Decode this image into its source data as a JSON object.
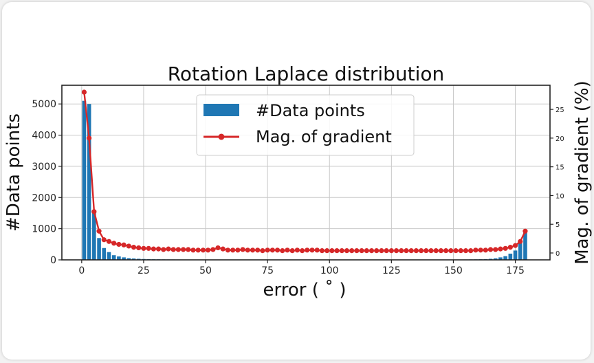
{
  "chart_data": {
    "type": "bar",
    "title": "Rotation Laplace distribution",
    "xlabel": "error ( ˚ )",
    "ylabel_left": "#Data points",
    "ylabel_right": "Mag. of gradient (%)",
    "xlim": [
      -8,
      189
    ],
    "ylim_left": [
      0,
      5600
    ],
    "ylim_right": [
      -1.2,
      29.2
    ],
    "x_ticks": [
      0,
      25,
      50,
      75,
      100,
      125,
      150,
      175
    ],
    "y_left_ticks": [
      0,
      1000,
      2000,
      3000,
      4000,
      5000
    ],
    "y_right_ticks": [
      0,
      5,
      10,
      15,
      20,
      25
    ],
    "grid": true,
    "legend_position": "top-center",
    "colors": {
      "bars": "#1f77b4",
      "line": "#d62728"
    },
    "series": [
      {
        "name": "#Data points",
        "type": "bar",
        "color": "#1f77b4",
        "x": [
          1,
          3,
          5,
          7,
          9,
          11,
          13,
          15,
          17,
          19,
          21,
          23,
          25,
          27,
          29,
          31,
          33,
          35,
          37,
          39,
          41,
          43,
          45,
          47,
          49,
          51,
          53,
          55,
          57,
          59,
          61,
          63,
          65,
          67,
          69,
          71,
          73,
          75,
          77,
          79,
          81,
          83,
          85,
          87,
          89,
          91,
          93,
          95,
          97,
          99,
          101,
          103,
          105,
          107,
          109,
          111,
          113,
          115,
          117,
          119,
          121,
          123,
          125,
          127,
          129,
          131,
          133,
          135,
          137,
          139,
          141,
          143,
          145,
          147,
          149,
          151,
          153,
          155,
          157,
          159,
          161,
          163,
          165,
          167,
          169,
          171,
          173,
          175,
          177,
          179
        ],
        "values": [
          5100,
          5000,
          1600,
          700,
          380,
          250,
          150,
          110,
          80,
          55,
          45,
          35,
          28,
          24,
          20,
          18,
          16,
          14,
          13,
          12,
          11,
          10,
          10,
          9,
          9,
          8,
          8,
          8,
          8,
          7,
          7,
          7,
          7,
          7,
          7,
          7,
          7,
          7,
          7,
          7,
          7,
          7,
          7,
          7,
          7,
          7,
          7,
          7,
          7,
          7,
          7,
          7,
          7,
          7,
          7,
          7,
          7,
          7,
          7,
          7,
          7,
          7,
          7,
          7,
          7,
          7,
          7,
          7,
          7,
          7,
          8,
          8,
          8,
          9,
          9,
          10,
          11,
          12,
          14,
          16,
          20,
          25,
          35,
          50,
          80,
          120,
          200,
          300,
          550,
          950
        ]
      },
      {
        "name": "Mag. of gradient",
        "type": "line",
        "color": "#d62728",
        "x": [
          1,
          3,
          5,
          7,
          9,
          11,
          13,
          15,
          17,
          19,
          21,
          23,
          25,
          27,
          29,
          31,
          33,
          35,
          37,
          39,
          41,
          43,
          45,
          47,
          49,
          51,
          53,
          55,
          57,
          59,
          61,
          63,
          65,
          67,
          69,
          71,
          73,
          75,
          77,
          79,
          81,
          83,
          85,
          87,
          89,
          91,
          93,
          95,
          97,
          99,
          101,
          103,
          105,
          107,
          109,
          111,
          113,
          115,
          117,
          119,
          121,
          123,
          125,
          127,
          129,
          131,
          133,
          135,
          137,
          139,
          141,
          143,
          145,
          147,
          149,
          151,
          153,
          155,
          157,
          159,
          161,
          163,
          165,
          167,
          169,
          171,
          173,
          175,
          177,
          179
        ],
        "values": [
          28.0,
          20.0,
          7.2,
          3.8,
          2.3,
          2.0,
          1.7,
          1.5,
          1.4,
          1.2,
          1.0,
          0.9,
          0.8,
          0.8,
          0.7,
          0.7,
          0.6,
          0.7,
          0.6,
          0.6,
          0.6,
          0.6,
          0.5,
          0.5,
          0.5,
          0.5,
          0.6,
          0.9,
          0.7,
          0.5,
          0.5,
          0.5,
          0.6,
          0.5,
          0.5,
          0.5,
          0.4,
          0.5,
          0.5,
          0.5,
          0.4,
          0.5,
          0.4,
          0.5,
          0.4,
          0.5,
          0.5,
          0.5,
          0.4,
          0.4,
          0.4,
          0.4,
          0.4,
          0.4,
          0.4,
          0.4,
          0.4,
          0.4,
          0.4,
          0.4,
          0.4,
          0.4,
          0.4,
          0.4,
          0.4,
          0.4,
          0.4,
          0.4,
          0.4,
          0.4,
          0.4,
          0.4,
          0.4,
          0.4,
          0.4,
          0.4,
          0.4,
          0.4,
          0.4,
          0.5,
          0.5,
          0.5,
          0.6,
          0.6,
          0.7,
          0.8,
          1.0,
          1.3,
          2.0,
          3.8
        ]
      }
    ]
  }
}
